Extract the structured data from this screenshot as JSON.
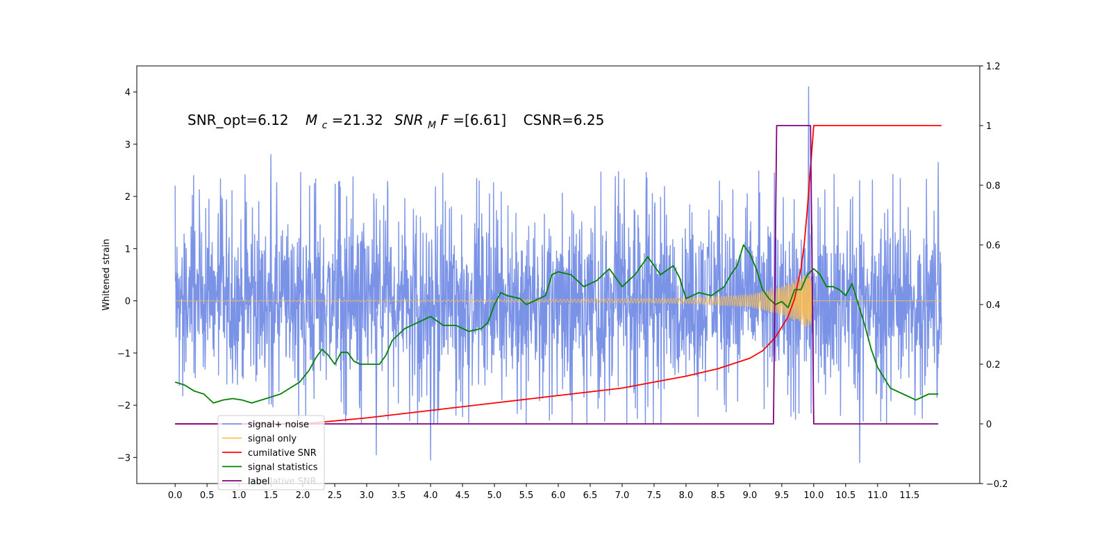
{
  "chart_data": {
    "type": "line",
    "title": "",
    "annotation": {
      "snr_opt": "SNR_opt=6.12",
      "mc_sym": "M",
      "mc_sub": "c",
      "mc_val": "=21.32",
      "snrmf_a": "SNR",
      "snrmf_sub": "M",
      "snrmf_b": "F",
      "snrmf_val": "=[6.61]",
      "csnr": "CSNR=6.25"
    },
    "xlabel": "",
    "ylabel": "Whitened strain",
    "y2label": "",
    "xlim": [
      -0.6,
      12.6
    ],
    "ylim": [
      -3.5,
      4.5
    ],
    "y2lim": [
      -0.2,
      1.2
    ],
    "x_ticks": [
      0.0,
      0.5,
      1.0,
      1.5,
      2.0,
      2.5,
      3.0,
      3.5,
      4.0,
      4.5,
      5.0,
      5.5,
      6.0,
      6.5,
      7.0,
      7.5,
      8.0,
      8.5,
      9.0,
      9.5,
      10.0,
      10.5,
      11.0,
      11.5
    ],
    "y_ticks": [
      -3,
      -2,
      -1,
      0,
      1,
      2,
      3,
      4
    ],
    "y2_ticks": [
      -0.2,
      0.0,
      0.2,
      0.4,
      0.6,
      0.8,
      1.0,
      1.2
    ],
    "grid": false,
    "legend_position": "lower-left",
    "legend": [
      {
        "label": "signal+ noise",
        "color": "#7b93e6"
      },
      {
        "label": "signal only",
        "color": "#ffc04d"
      },
      {
        "label": "cumilative SNR",
        "color": "#ff0000"
      },
      {
        "label": "signal statistics",
        "color": "#008000"
      },
      {
        "label": "label",
        "color": "#800080"
      }
    ],
    "legend_ghost_text": "cumilative SNR",
    "series": [
      {
        "name": "signal+ noise",
        "axis": "left",
        "color": "#7b93e6",
        "description": "whitened noisy strain, roughly within -2.3..2.5 with spikes",
        "x_range": [
          0.0,
          12.0
        ],
        "typical_range": [
          -2.0,
          2.2
        ],
        "peaks": [
          {
            "x": 1.5,
            "y": 2.8
          },
          {
            "x": 4.0,
            "y": -3.05
          },
          {
            "x": 3.15,
            "y": -2.95
          },
          {
            "x": 9.92,
            "y": 4.1
          },
          {
            "x": 10.72,
            "y": -3.1
          },
          {
            "x": 11.95,
            "y": 2.65
          }
        ]
      },
      {
        "name": "signal only",
        "axis": "left",
        "color": "#ffc04d",
        "chirp_amplitude": [
          [
            0.0,
            0.005
          ],
          [
            5.0,
            0.02
          ],
          [
            8.0,
            0.05
          ],
          [
            9.0,
            0.12
          ],
          [
            9.5,
            0.28
          ],
          [
            9.8,
            0.45
          ],
          [
            9.95,
            0.55
          ],
          [
            10.0,
            0.0
          ],
          [
            12.0,
            0.0
          ]
        ]
      },
      {
        "name": "cumilative SNR",
        "axis": "right",
        "color": "#ff0000",
        "x": [
          0.0,
          1.0,
          2.0,
          3.0,
          4.0,
          5.0,
          6.0,
          7.0,
          7.5,
          8.0,
          8.5,
          9.0,
          9.2,
          9.4,
          9.6,
          9.7,
          9.8,
          9.85,
          9.9,
          9.95,
          10.0,
          11.0,
          12.0
        ],
        "values": [
          0.0,
          0.0,
          0.0,
          0.02,
          0.045,
          0.07,
          0.095,
          0.12,
          0.14,
          0.16,
          0.185,
          0.22,
          0.245,
          0.29,
          0.36,
          0.42,
          0.52,
          0.6,
          0.72,
          0.86,
          1.0,
          1.0,
          1.0
        ]
      },
      {
        "name": "signal statistics",
        "axis": "right",
        "color": "#008000",
        "x": [
          0.0,
          0.15,
          0.3,
          0.45,
          0.6,
          0.75,
          0.9,
          1.05,
          1.2,
          1.35,
          1.5,
          1.65,
          1.8,
          1.95,
          2.1,
          2.2,
          2.3,
          2.4,
          2.5,
          2.6,
          2.7,
          2.8,
          2.9,
          3.0,
          3.1,
          3.2,
          3.3,
          3.4,
          3.5,
          3.6,
          3.8,
          4.0,
          4.2,
          4.4,
          4.6,
          4.8,
          4.9,
          5.0,
          5.1,
          5.2,
          5.4,
          5.5,
          5.6,
          5.8,
          5.9,
          6.0,
          6.2,
          6.4,
          6.6,
          6.8,
          7.0,
          7.2,
          7.4,
          7.6,
          7.8,
          7.9,
          8.0,
          8.2,
          8.4,
          8.6,
          8.7,
          8.8,
          8.9,
          9.0,
          9.1,
          9.2,
          9.3,
          9.4,
          9.5,
          9.6,
          9.7,
          9.8,
          9.9,
          10.0,
          10.1,
          10.2,
          10.3,
          10.4,
          10.5,
          10.6,
          10.7,
          10.8,
          10.9,
          11.0,
          11.2,
          11.4,
          11.6,
          11.8,
          11.95
        ],
        "values": [
          0.14,
          0.13,
          0.11,
          0.1,
          0.07,
          0.08,
          0.085,
          0.08,
          0.07,
          0.08,
          0.09,
          0.1,
          0.12,
          0.14,
          0.18,
          0.22,
          0.25,
          0.23,
          0.2,
          0.24,
          0.24,
          0.21,
          0.2,
          0.2,
          0.2,
          0.2,
          0.23,
          0.28,
          0.3,
          0.32,
          0.34,
          0.36,
          0.33,
          0.33,
          0.31,
          0.32,
          0.34,
          0.4,
          0.44,
          0.43,
          0.42,
          0.4,
          0.41,
          0.43,
          0.5,
          0.51,
          0.5,
          0.46,
          0.48,
          0.52,
          0.46,
          0.5,
          0.56,
          0.5,
          0.53,
          0.49,
          0.42,
          0.44,
          0.43,
          0.46,
          0.5,
          0.53,
          0.6,
          0.57,
          0.52,
          0.45,
          0.42,
          0.4,
          0.41,
          0.39,
          0.45,
          0.45,
          0.5,
          0.52,
          0.5,
          0.46,
          0.46,
          0.45,
          0.43,
          0.47,
          0.4,
          0.33,
          0.25,
          0.19,
          0.12,
          0.1,
          0.08,
          0.1,
          0.1
        ]
      },
      {
        "name": "label",
        "axis": "right",
        "color": "#800080",
        "x": [
          0.0,
          9.37,
          9.42,
          9.95,
          10.0,
          11.95
        ],
        "values": [
          0.0,
          0.0,
          1.0,
          1.0,
          0.0,
          0.0
        ]
      }
    ]
  }
}
